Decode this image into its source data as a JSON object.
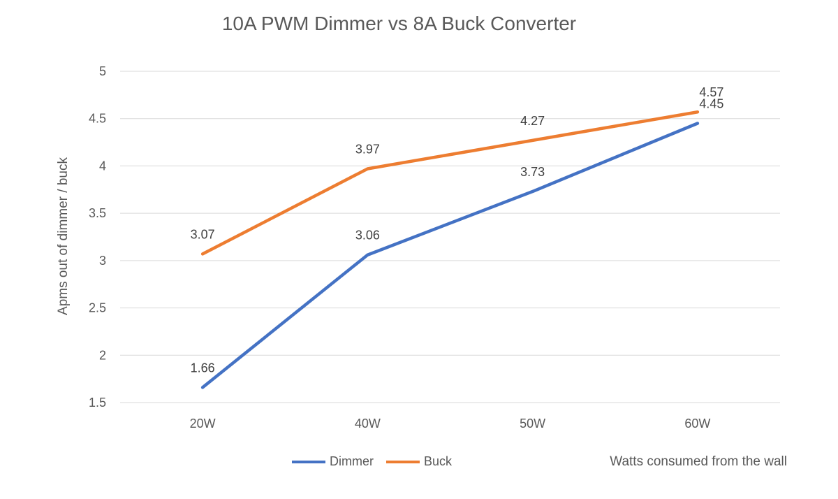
{
  "chart_data": {
    "type": "line",
    "title": "10A PWM Dimmer vs 8A Buck Converter",
    "xlabel": "Watts consumed from the wall",
    "ylabel": "Apms out of dimmer / buck",
    "categories": [
      "20W",
      "40W",
      "50W",
      "60W"
    ],
    "ylim": [
      1.5,
      5
    ],
    "yticks": [
      "1.5",
      "2",
      "2.5",
      "3",
      "3.5",
      "4",
      "4.5",
      "5"
    ],
    "grid": true,
    "legend_position": "bottom",
    "series": [
      {
        "name": "Dimmer",
        "color": "#4472C4",
        "values": [
          1.66,
          3.06,
          3.73,
          4.45
        ],
        "labels": [
          "1.66",
          "3.06",
          "3.73",
          "4.45"
        ]
      },
      {
        "name": "Buck",
        "color": "#ED7D31",
        "values": [
          3.07,
          3.97,
          4.27,
          4.57
        ],
        "labels": [
          "3.07",
          "3.97",
          "4.27",
          "4.57"
        ]
      }
    ]
  }
}
